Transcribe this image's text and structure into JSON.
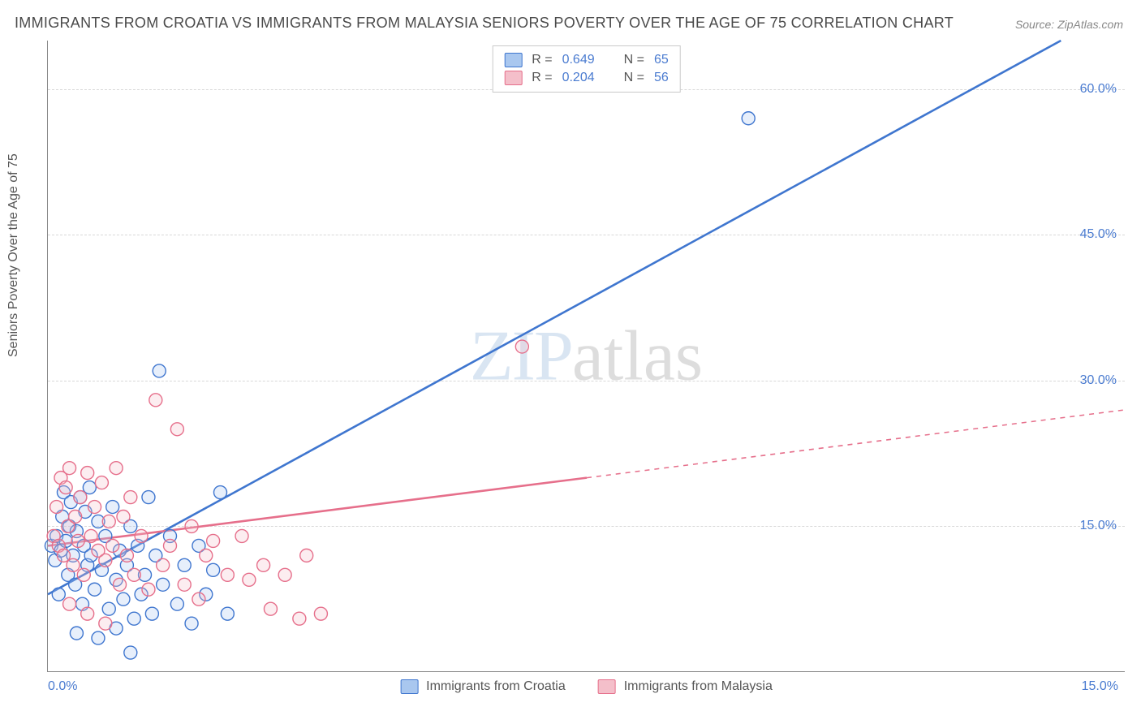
{
  "title": "IMMIGRANTS FROM CROATIA VS IMMIGRANTS FROM MALAYSIA SENIORS POVERTY OVER THE AGE OF 75 CORRELATION CHART",
  "source": "Source: ZipAtlas.com",
  "y_axis_label": "Seniors Poverty Over the Age of 75",
  "watermark_zip": "ZIP",
  "watermark_atlas": "atlas",
  "chart": {
    "type": "scatter",
    "background_color": "#ffffff",
    "grid_color": "#d8d8d8",
    "axis_color": "#888888",
    "tick_label_color": "#4a7bd0",
    "axis_label_color": "#555555",
    "title_color": "#4a4a4a",
    "title_fontsize": 18,
    "label_fontsize": 16,
    "tick_fontsize": 16,
    "xlim": [
      0,
      15
    ],
    "ylim": [
      0,
      65
    ],
    "y_ticks": [
      15,
      30,
      45,
      60
    ],
    "y_tick_labels": [
      "15.0%",
      "30.0%",
      "45.0%",
      "60.0%"
    ],
    "x_tick_labels": {
      "left": "0.0%",
      "right": "15.0%"
    },
    "marker_radius": 8,
    "marker_fill_opacity": 0.28,
    "marker_stroke_width": 1.4,
    "line_stroke_width": 2.6,
    "series": [
      {
        "name": "Immigrants from Croatia",
        "color_fill": "#a9c7ef",
        "color_stroke": "#3f76cf",
        "r_value": "0.649",
        "n_value": "65",
        "regression": {
          "x1": 0,
          "y1": 8,
          "x2": 14.1,
          "y2": 65,
          "dashed_from_x": null
        },
        "points": [
          [
            0.05,
            13.0
          ],
          [
            0.1,
            11.5
          ],
          [
            0.12,
            14.0
          ],
          [
            0.15,
            8.0
          ],
          [
            0.18,
            12.5
          ],
          [
            0.2,
            16.0
          ],
          [
            0.22,
            18.5
          ],
          [
            0.25,
            13.5
          ],
          [
            0.28,
            10.0
          ],
          [
            0.3,
            15.0
          ],
          [
            0.32,
            17.5
          ],
          [
            0.35,
            12.0
          ],
          [
            0.38,
            9.0
          ],
          [
            0.4,
            14.5
          ],
          [
            0.45,
            18.0
          ],
          [
            0.48,
            7.0
          ],
          [
            0.5,
            13.0
          ],
          [
            0.52,
            16.5
          ],
          [
            0.55,
            11.0
          ],
          [
            0.58,
            19.0
          ],
          [
            0.6,
            12.0
          ],
          [
            0.65,
            8.5
          ],
          [
            0.7,
            15.5
          ],
          [
            0.75,
            10.5
          ],
          [
            0.8,
            14.0
          ],
          [
            0.85,
            6.5
          ],
          [
            0.9,
            17.0
          ],
          [
            0.95,
            9.5
          ],
          [
            1.0,
            12.5
          ],
          [
            1.05,
            7.5
          ],
          [
            1.1,
            11.0
          ],
          [
            1.15,
            15.0
          ],
          [
            1.2,
            5.5
          ],
          [
            1.25,
            13.0
          ],
          [
            1.3,
            8.0
          ],
          [
            1.35,
            10.0
          ],
          [
            1.4,
            18.0
          ],
          [
            1.45,
            6.0
          ],
          [
            1.5,
            12.0
          ],
          [
            1.6,
            9.0
          ],
          [
            1.7,
            14.0
          ],
          [
            1.8,
            7.0
          ],
          [
            1.9,
            11.0
          ],
          [
            2.0,
            5.0
          ],
          [
            2.1,
            13.0
          ],
          [
            2.2,
            8.0
          ],
          [
            2.3,
            10.5
          ],
          [
            2.4,
            18.5
          ],
          [
            2.5,
            6.0
          ],
          [
            1.55,
            31.0
          ],
          [
            1.15,
            2.0
          ],
          [
            0.95,
            4.5
          ],
          [
            0.7,
            3.5
          ],
          [
            0.4,
            4.0
          ],
          [
            9.75,
            57.0
          ]
        ]
      },
      {
        "name": "Immigrants from Malaysia",
        "color_fill": "#f4bfca",
        "color_stroke": "#e66f8b",
        "r_value": "0.204",
        "n_value": "56",
        "regression": {
          "x1": 0,
          "y1": 13,
          "x2": 15,
          "y2": 27,
          "dashed_from_x": 7.5
        },
        "points": [
          [
            0.08,
            14.0
          ],
          [
            0.12,
            17.0
          ],
          [
            0.15,
            13.0
          ],
          [
            0.18,
            20.0
          ],
          [
            0.22,
            12.0
          ],
          [
            0.25,
            19.0
          ],
          [
            0.28,
            15.0
          ],
          [
            0.3,
            21.0
          ],
          [
            0.35,
            11.0
          ],
          [
            0.38,
            16.0
          ],
          [
            0.42,
            13.5
          ],
          [
            0.45,
            18.0
          ],
          [
            0.5,
            10.0
          ],
          [
            0.55,
            20.5
          ],
          [
            0.6,
            14.0
          ],
          [
            0.65,
            17.0
          ],
          [
            0.7,
            12.5
          ],
          [
            0.75,
            19.5
          ],
          [
            0.8,
            11.5
          ],
          [
            0.85,
            15.5
          ],
          [
            0.9,
            13.0
          ],
          [
            0.95,
            21.0
          ],
          [
            1.0,
            9.0
          ],
          [
            1.05,
            16.0
          ],
          [
            1.1,
            12.0
          ],
          [
            1.15,
            18.0
          ],
          [
            1.2,
            10.0
          ],
          [
            1.3,
            14.0
          ],
          [
            1.4,
            8.5
          ],
          [
            1.5,
            28.0
          ],
          [
            1.6,
            11.0
          ],
          [
            1.7,
            13.0
          ],
          [
            1.8,
            25.0
          ],
          [
            1.9,
            9.0
          ],
          [
            2.0,
            15.0
          ],
          [
            2.1,
            7.5
          ],
          [
            2.2,
            12.0
          ],
          [
            2.3,
            13.5
          ],
          [
            2.5,
            10.0
          ],
          [
            2.7,
            14.0
          ],
          [
            2.8,
            9.5
          ],
          [
            3.0,
            11.0
          ],
          [
            3.1,
            6.5
          ],
          [
            3.3,
            10.0
          ],
          [
            3.5,
            5.5
          ],
          [
            3.6,
            12.0
          ],
          [
            3.8,
            6.0
          ],
          [
            6.6,
            33.5
          ],
          [
            0.3,
            7.0
          ],
          [
            0.55,
            6.0
          ],
          [
            0.8,
            5.0
          ]
        ]
      }
    ]
  },
  "legend_top": {
    "r_label": "R =",
    "n_label": "N ="
  },
  "legend_bottom": {
    "series1_label": "Immigrants from Croatia",
    "series2_label": "Immigrants from Malaysia"
  }
}
